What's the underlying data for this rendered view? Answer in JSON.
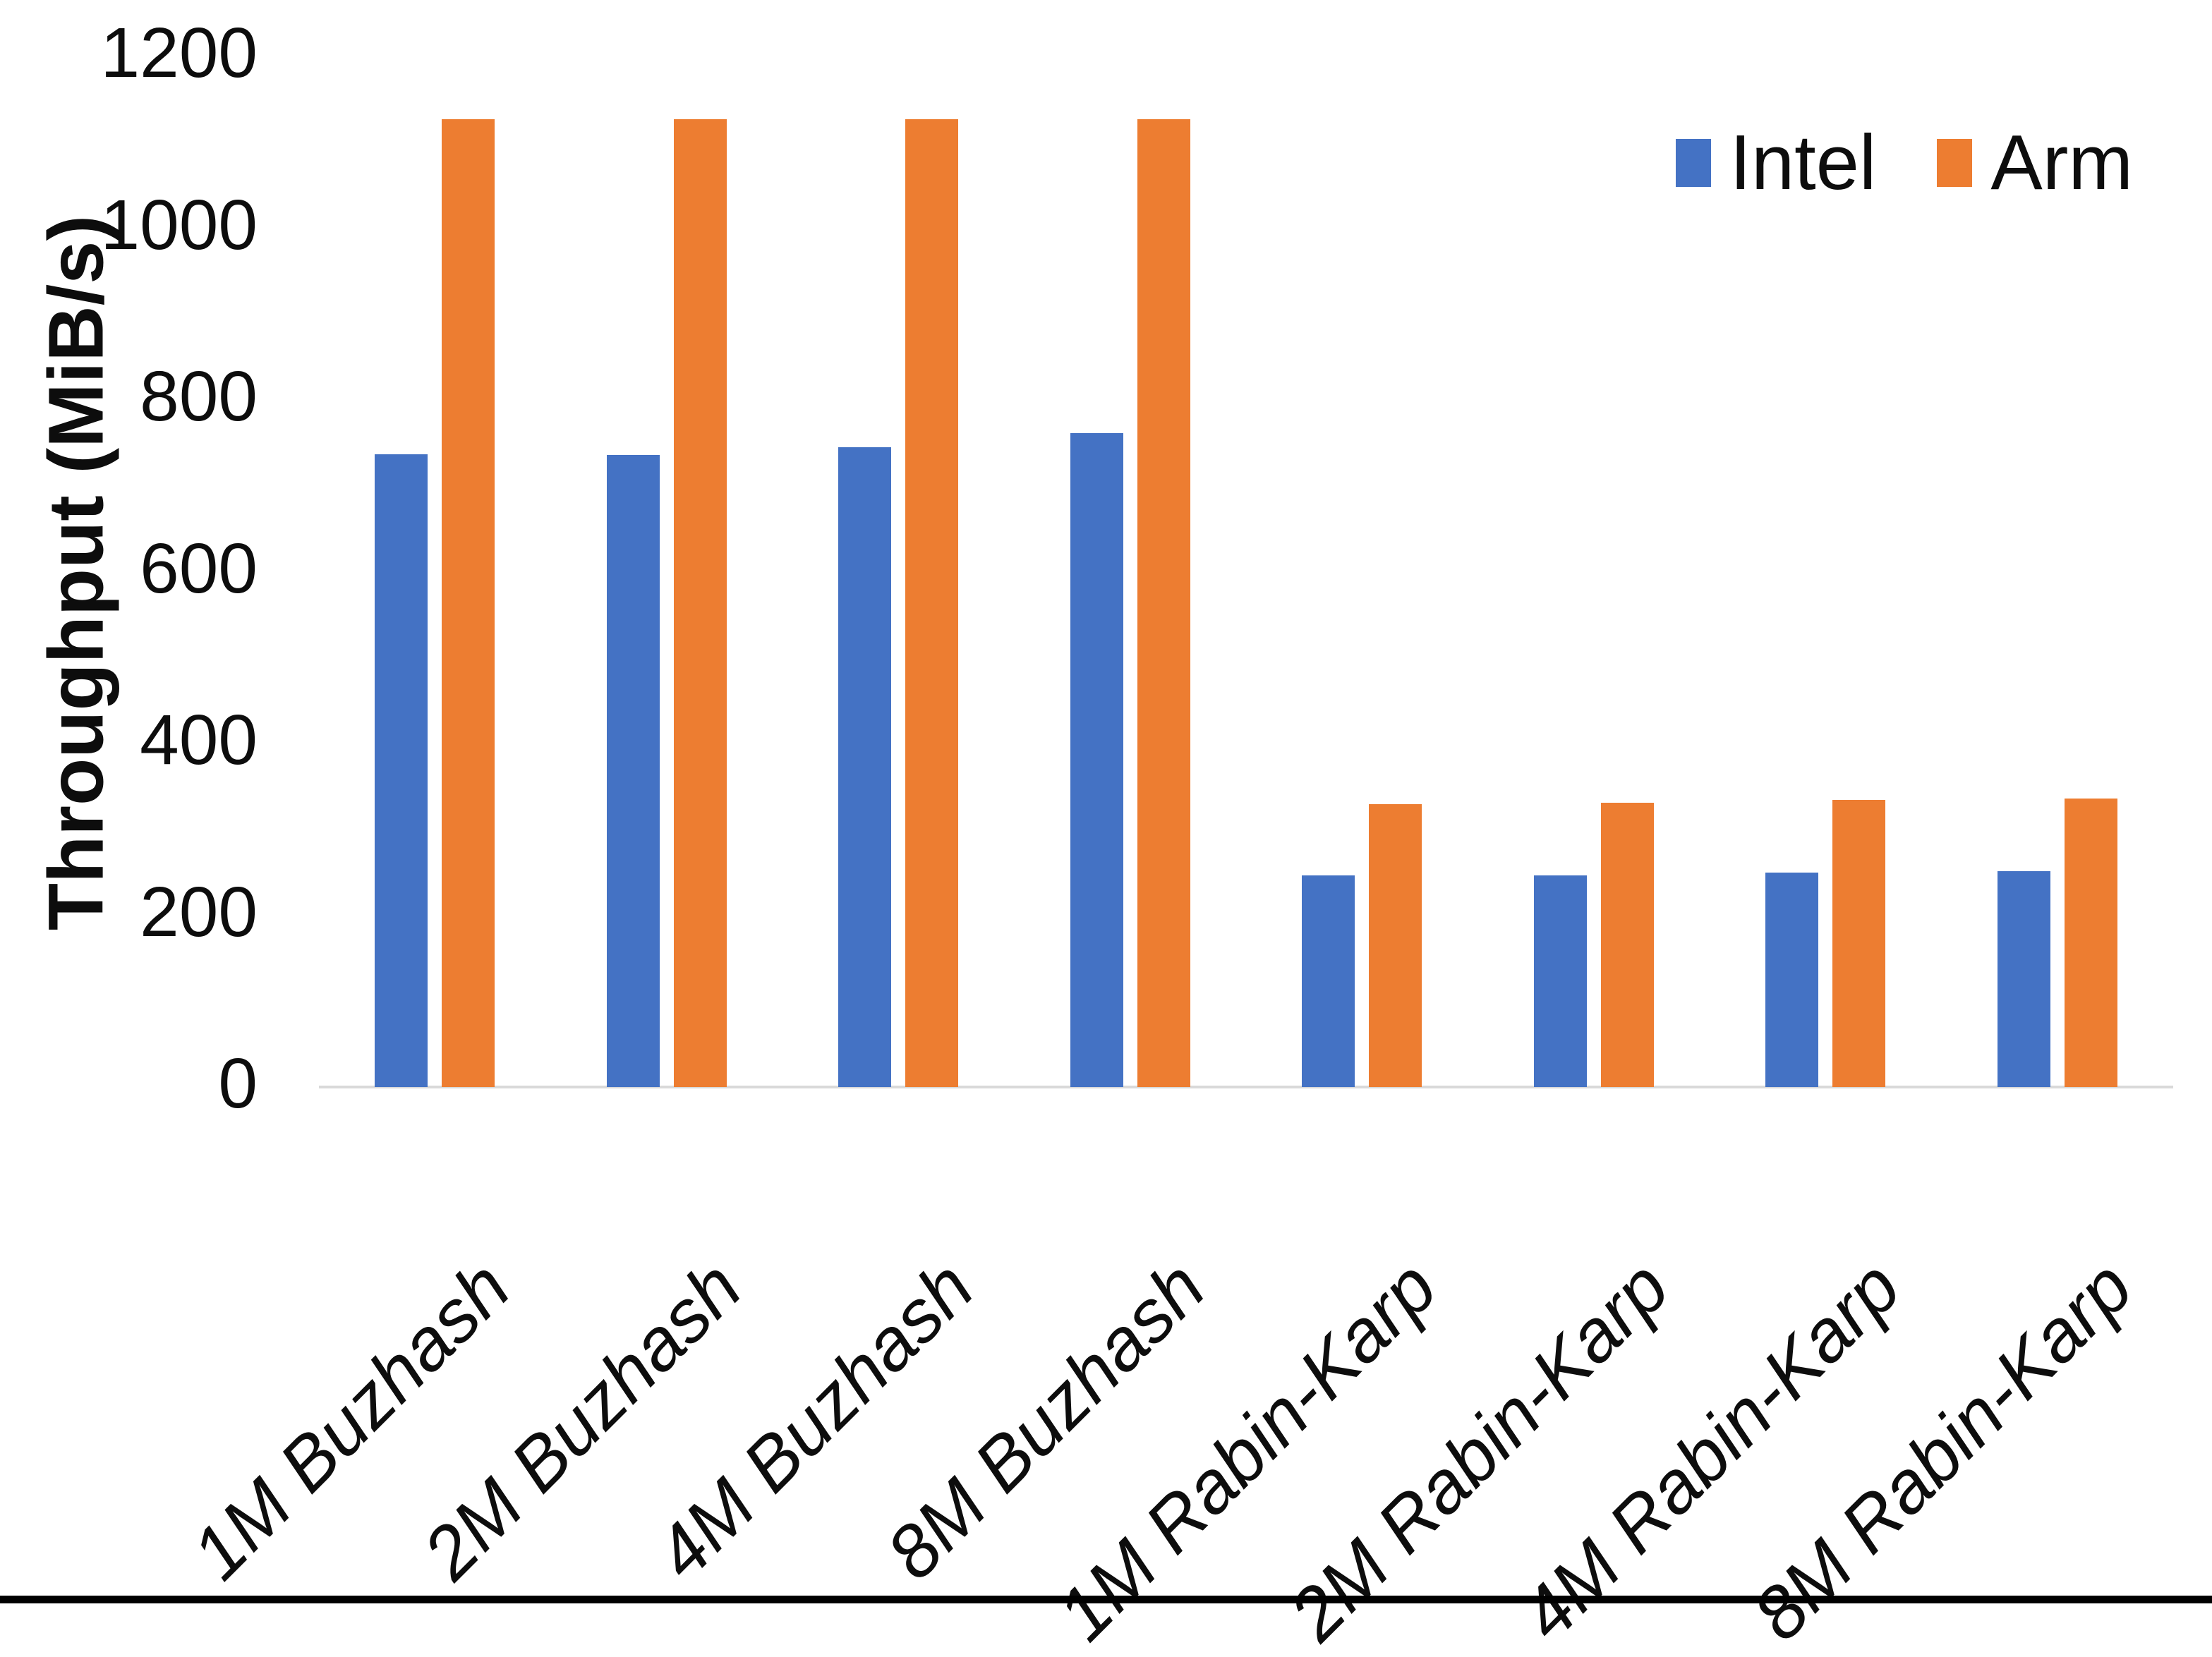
{
  "chart_data": {
    "type": "bar",
    "title": "",
    "ylabel": "Throughput (MiB/s)",
    "xlabel": "",
    "ylim": [
      0,
      1200
    ],
    "yticks": [
      0,
      200,
      400,
      600,
      800,
      1000,
      1200
    ],
    "categories": [
      "1M Buzhash",
      "2M Buzhash",
      "4M Buzhash",
      "8M Buzhash",
      "1M Rabin-Karp",
      "2M Rabin-Karp",
      "4M Rabin-Karp",
      "8M Rabin-Karp"
    ],
    "series": [
      {
        "name": "Intel",
        "color": "#4472C4",
        "values": [
          737,
          736,
          745,
          761,
          246,
          246,
          250,
          251
        ]
      },
      {
        "name": "Arm",
        "color": "#ED7D31",
        "values": [
          1127,
          1127,
          1127,
          1127,
          329,
          331,
          334,
          336
        ]
      }
    ],
    "legend_position": "top-right",
    "grid": false,
    "axis_line_color": "#D9D9D9",
    "background_color": "#FFFFFF",
    "text_color": "#0D0D0D"
  }
}
